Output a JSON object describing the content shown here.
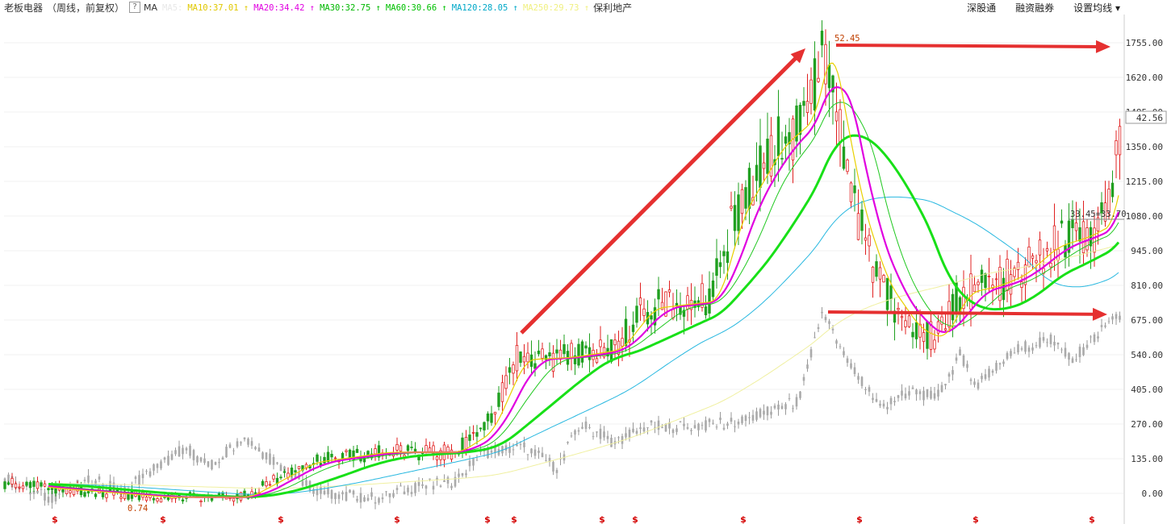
{
  "header": {
    "stock_name": "老板电器",
    "period": "（周线，前复权）",
    "help_label": "?",
    "indicator": "MA",
    "ma_labels": [
      {
        "text": "MA5:",
        "color": "#e8e8e8"
      },
      {
        "text": "MA10:37.01",
        "color": "#e0c800"
      },
      {
        "text": "MA20:34.42",
        "color": "#e000e0"
      },
      {
        "text": "MA30:32.75",
        "color": "#00b800"
      },
      {
        "text": "MA60:30.66",
        "color": "#00c000"
      },
      {
        "text": "MA120:28.05",
        "color": "#00a8c8"
      },
      {
        "text": "MA250:29.73",
        "color": "#f0f080"
      }
    ],
    "related": "保利地产",
    "menu": [
      "深股通",
      "融资融券",
      "设置均线 ▾"
    ]
  },
  "chart_data": {
    "type": "candlestick",
    "y_ticks": [
      "1755.00",
      "1620.00",
      "1485.00",
      "1350.00",
      "1215.00",
      "1080.00",
      "945.00",
      "810.00",
      "675.00",
      "540.00",
      "405.00",
      "270.00",
      "135.00",
      "0.00"
    ],
    "ylim": [
      0,
      1755
    ],
    "current_price": "42.56",
    "high_label": "52.45",
    "low_label": "0.74",
    "hline_label": "33.45=33.70",
    "ma_series": [
      {
        "name": "MA10",
        "color": "#e8d000"
      },
      {
        "name": "MA20",
        "color": "#e000e0"
      },
      {
        "name": "MA30",
        "color": "#20c820"
      },
      {
        "name": "MA60",
        "color": "#18e018"
      },
      {
        "name": "MA120",
        "color": "#28b8e0"
      },
      {
        "name": "MA250",
        "color": "#f0f0a0"
      }
    ],
    "marker_symbol": "$",
    "grid": true
  },
  "colors": {
    "up": "#e02020",
    "down": "#20a020",
    "arrow": "#e53030"
  }
}
